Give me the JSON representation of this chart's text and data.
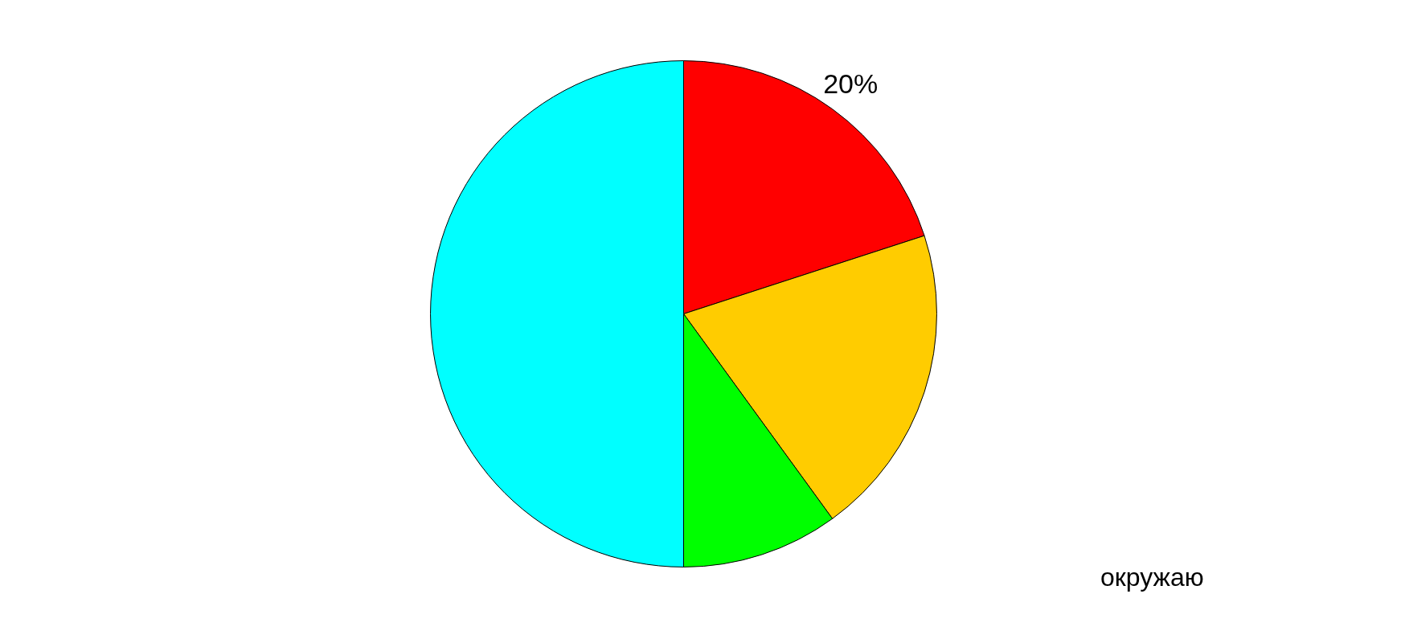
{
  "chart_data": {
    "type": "pie",
    "categories": [
      null,
      null,
      null,
      null
    ],
    "values": [
      20,
      20,
      10,
      50
    ],
    "colors": [
      "#ff0000",
      "#ffcc00",
      "#00ff00",
      "#00ffff"
    ],
    "value_labels": [
      "20%",
      null,
      null,
      null
    ],
    "annotations": [
      "окружаю"
    ]
  }
}
